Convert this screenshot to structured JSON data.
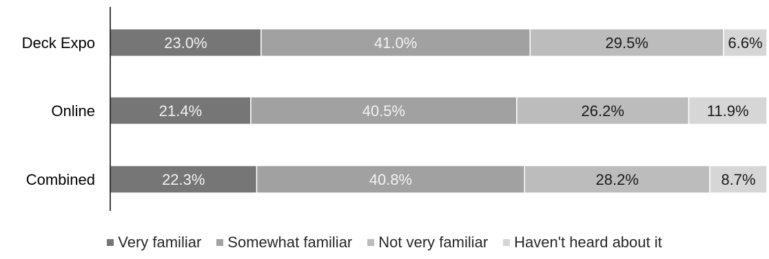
{
  "colors": {
    "very_familiar": "#767676",
    "somewhat_familiar": "#a1a1a1",
    "not_very_familiar": "#bcbcbc",
    "havent_heard": "#d6d6d6",
    "axis": "#000000",
    "light_label": "#f2f2f2",
    "dark_label": "#1a1a1a"
  },
  "chart_data": {
    "type": "bar",
    "orientation": "horizontal",
    "stacked": true,
    "percent_scale": true,
    "categories": [
      "Deck Expo",
      "Online",
      "Combined"
    ],
    "series": [
      {
        "name": "Very familiar",
        "values": [
          23.0,
          21.4,
          22.3
        ],
        "labels": [
          "23.0%",
          "21.4%",
          "22.3%"
        ]
      },
      {
        "name": "Somewhat familiar",
        "values": [
          41.0,
          40.5,
          40.8
        ],
        "labels": [
          "41.0%",
          "40.5%",
          "40.8%"
        ]
      },
      {
        "name": "Not very familiar",
        "values": [
          29.5,
          26.2,
          28.2
        ],
        "labels": [
          "29.5%",
          "26.2%",
          "28.2%"
        ]
      },
      {
        "name": "Haven't heard about it",
        "values": [
          6.6,
          11.9,
          8.7
        ],
        "labels": [
          "6.6%",
          "11.9%",
          "8.7%"
        ]
      }
    ],
    "legend_position": "bottom",
    "grid": false
  }
}
